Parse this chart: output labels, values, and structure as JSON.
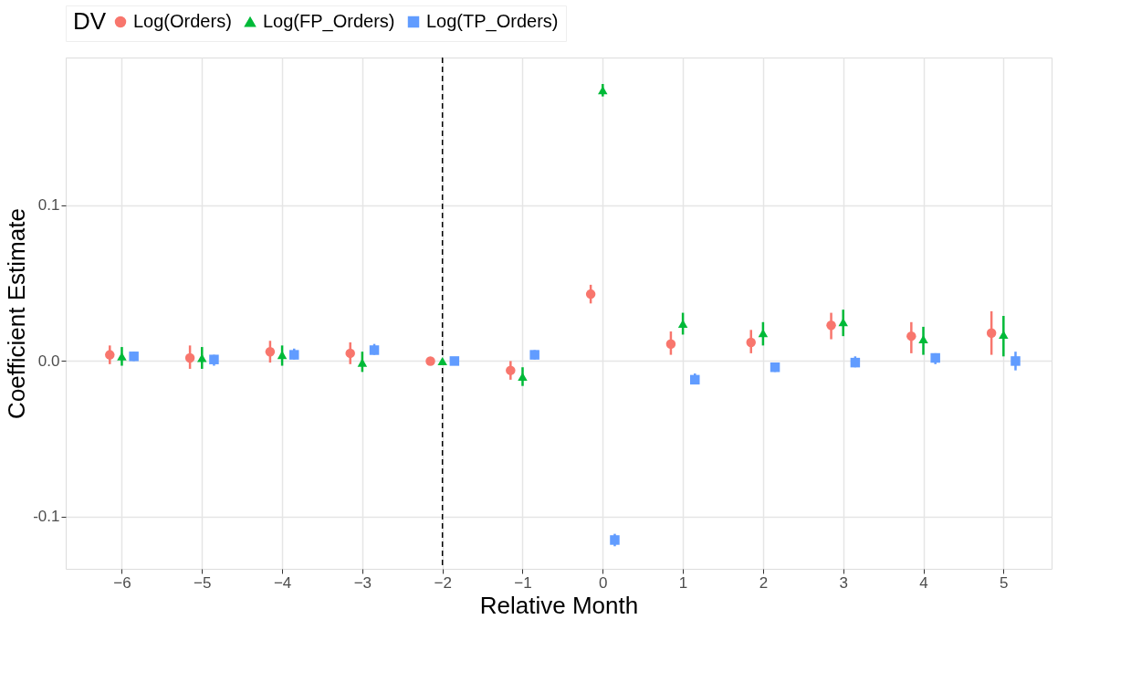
{
  "chart_data": {
    "type": "scatter",
    "xlabel": "Relative Month",
    "ylabel": "Coefficient Estimate",
    "legend_title": "DV",
    "legend": "top",
    "grid": true,
    "xlim": [
      -6.7,
      5.6
    ],
    "xticks": [
      -6,
      -5,
      -4,
      -3,
      -2,
      -1,
      0,
      1,
      2,
      3,
      4,
      5
    ],
    "ylim": [
      -0.1335,
      0.195
    ],
    "yticks": [
      {
        "value": -0.1,
        "label": "-0.1"
      },
      {
        "value": 0,
        "label": "0.0"
      },
      {
        "value": 0.1,
        "label": "0.1"
      }
    ],
    "ref_lines": [
      {
        "axis": "x",
        "value": -2,
        "line_style": "dashed",
        "color": "#000000"
      }
    ],
    "series": [
      {
        "name": "Log(Orders)",
        "color": "#f8766d",
        "marker": "circle",
        "x": [
          -6.15,
          -5.15,
          -4.15,
          -3.15,
          -2.15,
          -1.15,
          -0.15,
          0.85,
          1.85,
          2.85,
          3.85,
          4.85
        ],
        "values": [
          0.004,
          0.002,
          0.006,
          0.005,
          0,
          -0.006,
          0.043,
          0.011,
          0.012,
          0.023,
          0.016,
          0.018
        ],
        "errors": [
          [
            -0.002,
            0.01
          ],
          [
            -0.005,
            0.01
          ],
          [
            -0.001,
            0.013
          ],
          [
            -0.002,
            0.012
          ],
          null,
          [
            -0.012,
            0.0
          ],
          [
            0.037,
            0.049
          ],
          [
            0.004,
            0.019
          ],
          [
            0.005,
            0.02
          ],
          [
            0.014,
            0.031
          ],
          [
            0.005,
            0.025
          ],
          [
            0.004,
            0.032
          ]
        ]
      },
      {
        "name": "Log(FP_Orders)",
        "color": "#00ba38",
        "marker": "triangle",
        "x": [
          -6,
          -5,
          -4,
          -3,
          -2,
          -1,
          0,
          1,
          2,
          3,
          4,
          5
        ],
        "values": [
          0.003,
          0.002,
          0.004,
          -0.001,
          0,
          -0.01,
          0.174,
          0.024,
          0.018,
          0.025,
          0.014,
          0.017
        ],
        "errors": [
          [
            -0.003,
            0.009
          ],
          [
            -0.005,
            0.009
          ],
          [
            -0.003,
            0.01
          ],
          [
            -0.007,
            0.006
          ],
          null,
          [
            -0.016,
            -0.004
          ],
          [
            0.17,
            0.178
          ],
          [
            0.017,
            0.031
          ],
          [
            0.01,
            0.025
          ],
          [
            0.016,
            0.033
          ],
          [
            0.004,
            0.022
          ],
          [
            0.003,
            0.029
          ]
        ]
      },
      {
        "name": "Log(TP_Orders)",
        "color": "#619cff",
        "marker": "square",
        "x": [
          -5.85,
          -4.85,
          -3.85,
          -2.85,
          -1.85,
          -0.85,
          0.15,
          1.15,
          2.15,
          3.15,
          4.15,
          5.15
        ],
        "values": [
          0.003,
          0.001,
          0.004,
          0.007,
          0,
          0.004,
          -0.115,
          -0.012,
          -0.004,
          -0.001,
          0.002,
          0.0
        ],
        "errors": [
          [
            0.0,
            0.006
          ],
          [
            -0.003,
            0.004
          ],
          [
            0.001,
            0.008
          ],
          [
            0.004,
            0.011
          ],
          null,
          [
            0.001,
            0.007
          ],
          [
            -0.119,
            -0.111
          ],
          [
            -0.015,
            -0.008
          ],
          [
            -0.007,
            -0.001
          ],
          [
            -0.004,
            0.003
          ],
          [
            -0.002,
            0.005
          ],
          [
            -0.006,
            0.006
          ]
        ]
      }
    ]
  }
}
